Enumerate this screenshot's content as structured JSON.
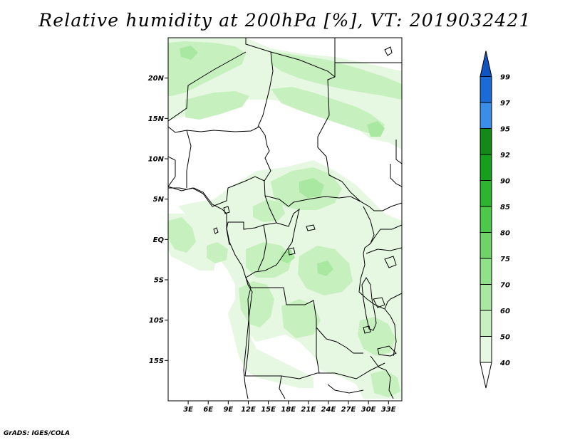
{
  "title": "Relative humidity at 200hPa [%], VT: 2019032421",
  "credit": "GrADS: IGES/COLA",
  "map": {
    "lon_range": [
      0,
      35
    ],
    "lat_range": [
      -20,
      25
    ],
    "lat_ticks": [
      {
        "lat": 20,
        "label": "20N"
      },
      {
        "lat": 15,
        "label": "15N"
      },
      {
        "lat": 10,
        "label": "10N"
      },
      {
        "lat": 5,
        "label": "5N"
      },
      {
        "lat": 0,
        "label": "EQ"
      },
      {
        "lat": -5,
        "label": "5S"
      },
      {
        "lat": -10,
        "label": "10S"
      },
      {
        "lat": -15,
        "label": "15S"
      }
    ],
    "lon_ticks": [
      {
        "lon": 3,
        "label": "3E"
      },
      {
        "lon": 6,
        "label": "6E"
      },
      {
        "lon": 9,
        "label": "9E"
      },
      {
        "lon": 12,
        "label": "12E"
      },
      {
        "lon": 15,
        "label": "15E"
      },
      {
        "lon": 18,
        "label": "18E"
      },
      {
        "lon": 21,
        "label": "21E"
      },
      {
        "lon": 24,
        "label": "24E"
      },
      {
        "lon": 27,
        "label": "27E"
      },
      {
        "lon": 30,
        "label": "30E"
      },
      {
        "lon": 33,
        "label": "33E"
      }
    ]
  },
  "colorbar": {
    "levels": [
      "40",
      "50",
      "60",
      "70",
      "75",
      "80",
      "85",
      "90",
      "92",
      "95",
      "97",
      "99"
    ],
    "colors": [
      "#ffffff",
      "#e6f8e1",
      "#c7f0bf",
      "#a8e8a0",
      "#90e28a",
      "#6fd36a",
      "#4cc84a",
      "#2db52f",
      "#159f1d",
      "#118a16",
      "#3b8ee8",
      "#1b6bd6",
      "#0f54c0"
    ]
  },
  "field_colors": {
    "light": "#e6f8e1",
    "mid": "#c7f0bf",
    "dark": "#a8e8a0",
    "border": "#000000"
  }
}
